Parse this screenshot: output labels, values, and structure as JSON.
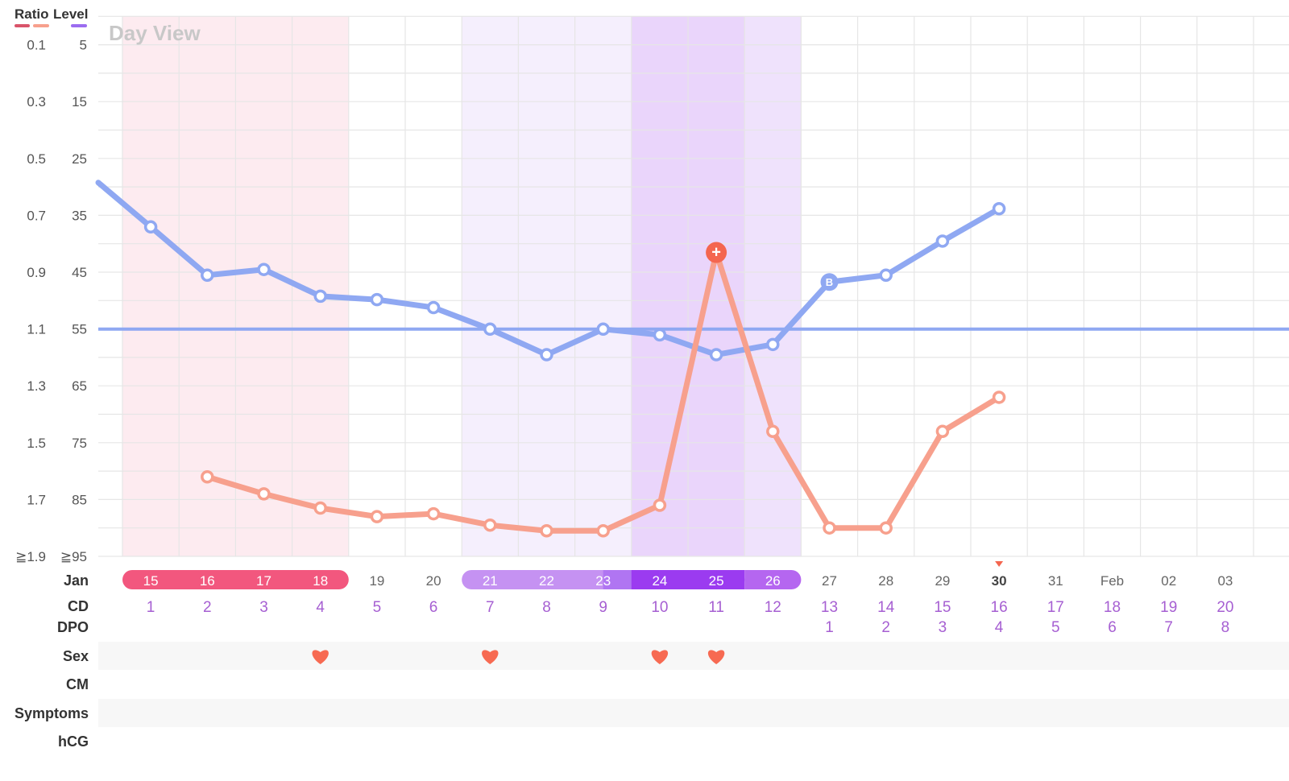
{
  "legend": {
    "ratio_label": "Ratio",
    "level_label": "Level"
  },
  "view_label": "Day View",
  "row_labels": {
    "month": "Jan",
    "cd": "CD",
    "dpo": "DPO",
    "sex": "Sex",
    "cm": "CM",
    "symptoms": "Symptoms",
    "hcg": "hCG"
  },
  "colors": {
    "level_line": "#8fa8f2",
    "ratio_line": "#f7a08d",
    "period": "#f2577e",
    "fertile_light": "#c592f2",
    "fertile_dark": "#9b3bf0",
    "fertile_mid": "#b566f0",
    "heart": "#f76a52",
    "cd_text": "#a65fd2",
    "grid": "#e6e6e6"
  },
  "chart_data": {
    "type": "line",
    "title": "Day View",
    "y_left_label": "Ratio",
    "y_right_label": "Level",
    "ratio_ticks": [
      "≧1.9",
      "1.7",
      "1.5",
      "1.3",
      "1.1",
      "0.9",
      "0.7",
      "0.5",
      "0.3",
      "0.1"
    ],
    "level_ticks": [
      "≧95",
      "85",
      "75",
      "65",
      "55",
      "45",
      "35",
      "25",
      "15",
      "5"
    ],
    "ylim_level": [
      5,
      100
    ],
    "ylim_ratio": [
      0.1,
      2.0
    ],
    "dates": [
      "15",
      "16",
      "17",
      "18",
      "19",
      "20",
      "21",
      "22",
      "23",
      "24",
      "25",
      "26",
      "27",
      "28",
      "29",
      "30",
      "31",
      "Feb",
      "02",
      "03"
    ],
    "cycle_days": [
      "1",
      "2",
      "3",
      "4",
      "5",
      "6",
      "7",
      "8",
      "9",
      "10",
      "11",
      "12",
      "13",
      "14",
      "15",
      "16",
      "17",
      "18",
      "19",
      "20"
    ],
    "dpo": [
      "",
      "",
      "",
      "",
      "",
      "",
      "",
      "",
      "",
      "",
      "",
      "",
      "1",
      "2",
      "3",
      "4",
      "5",
      "6",
      "7",
      "8"
    ],
    "today_index": 15,
    "period_days": [
      0,
      1,
      2,
      3
    ],
    "fertile_light_days": [
      6,
      7,
      8
    ],
    "fertile_dark_days": [
      9,
      10
    ],
    "fertile_mid_days": [
      11
    ],
    "baseline_level": 45,
    "series": [
      {
        "name": "Level",
        "values": [
          63,
          54.5,
          55.5,
          50.8,
          50.2,
          48.8,
          45,
          40.5,
          45,
          44,
          40.5,
          42.3,
          53.3,
          54.5,
          60.5,
          66.2,
          null,
          null,
          null,
          null
        ],
        "start_value": 70.8,
        "markers": {
          "12": "B"
        }
      },
      {
        "name": "Ratio",
        "values": [
          null,
          0.38,
          0.32,
          0.27,
          0.24,
          0.25,
          0.21,
          0.19,
          0.19,
          0.28,
          1.17,
          0.54,
          0.2,
          0.2,
          0.54,
          0.66,
          null,
          null,
          null,
          null
        ],
        "markers": {
          "10": "+"
        }
      }
    ],
    "sex_days": [
      3,
      6,
      9,
      10
    ]
  }
}
